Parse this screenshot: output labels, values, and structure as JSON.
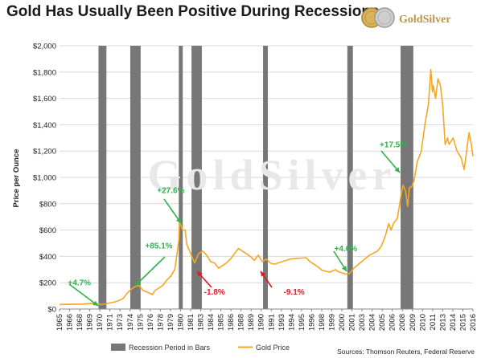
{
  "header": {
    "title": "Gold Has Usually Been Positive During Recessions",
    "brand": "GoldSilver",
    "colors": {
      "gold": "#f5a623",
      "recession": "#777777",
      "up": "#2db34a",
      "down": "#e0191d"
    }
  },
  "watermark": "GoldSilver",
  "footer": {
    "sources": "Sources: Thomson Reuters, Federal Reserve"
  },
  "chart_data": {
    "type": "line",
    "title": "Gold Has Usually Been Positive During Recessions",
    "ylabel": "Price per Ounce",
    "xlabel": "",
    "ylim": [
      0,
      2000
    ],
    "xlim": [
      1965,
      2017
    ],
    "grid": "horizontal",
    "legend": "bottom",
    "y_ticks": [
      "$0",
      "$200",
      "$400",
      "$600",
      "$800",
      "$1,000",
      "$1,200",
      "$1,400",
      "$1,600",
      "$1,800",
      "$2,000"
    ],
    "y_tick_values": [
      0,
      200,
      400,
      600,
      800,
      1000,
      1200,
      1400,
      1600,
      1800,
      2000
    ],
    "x_ticks": [
      "1965",
      "1966",
      "1968",
      "1969",
      "1970",
      "1971",
      "1973",
      "1974",
      "1975",
      "1976",
      "1978",
      "1979",
      "1980",
      "1981",
      "1983",
      "1984",
      "1985",
      "1986",
      "1988",
      "1989",
      "1990",
      "1991",
      "1993",
      "1994",
      "1995",
      "1996",
      "1998",
      "1999",
      "2000",
      "2001",
      "2003",
      "2004",
      "2005",
      "2006",
      "2008",
      "2009",
      "2010",
      "2011",
      "2013",
      "2014",
      "2015",
      "2016"
    ],
    "recessions": [
      [
        1969.9,
        1970.9
      ],
      [
        1973.9,
        1975.2
      ],
      [
        1980.0,
        1980.5
      ],
      [
        1981.6,
        1982.9
      ],
      [
        1990.6,
        1991.2
      ],
      [
        2001.2,
        2001.9
      ],
      [
        2007.9,
        2009.5
      ]
    ],
    "series": [
      {
        "name": "Gold Price",
        "color": "#f5a623",
        "x": [
          1965.0,
          1968.0,
          1969.0,
          1970.0,
          1970.5,
          1971.0,
          1972.0,
          1972.5,
          1973.0,
          1973.5,
          1974.0,
          1974.5,
          1975.0,
          1975.5,
          1976.0,
          1976.7,
          1977.0,
          1978.0,
          1978.5,
          1979.0,
          1979.5,
          1980.0,
          1980.1,
          1980.5,
          1980.8,
          1981.0,
          1981.5,
          1982.0,
          1982.5,
          1983.0,
          1983.5,
          1984.0,
          1984.5,
          1985.0,
          1985.5,
          1986.0,
          1986.5,
          1987.0,
          1987.5,
          1988.0,
          1988.5,
          1989.0,
          1989.5,
          1990.0,
          1990.5,
          1991.0,
          1991.5,
          1992.0,
          1993.0,
          1994.0,
          1995.0,
          1996.0,
          1996.5,
          1997.0,
          1997.5,
          1998.0,
          1999.0,
          1999.7,
          2000.0,
          2000.5,
          2001.0,
          2001.5,
          2002.0,
          2003.0,
          2004.0,
          2005.0,
          2005.5,
          2006.0,
          2006.4,
          2006.7,
          2007.0,
          2007.5,
          2008.0,
          2008.2,
          2008.5,
          2008.8,
          2009.0,
          2009.3,
          2009.6,
          2010.0,
          2010.5,
          2011.0,
          2011.4,
          2011.7,
          2011.9,
          2012.0,
          2012.3,
          2012.6,
          2012.9,
          2013.2,
          2013.5,
          2013.8,
          2014.0,
          2014.5,
          2015.0,
          2015.5,
          2015.9,
          2016.2,
          2016.5,
          2016.8,
          2017.0
        ],
        "values": [
          35,
          38,
          42,
          36,
          36,
          42,
          55,
          65,
          80,
          120,
          150,
          170,
          180,
          140,
          130,
          110,
          140,
          180,
          220,
          250,
          300,
          520,
          660,
          600,
          600,
          490,
          420,
          350,
          420,
          440,
          410,
          360,
          350,
          310,
          330,
          350,
          380,
          420,
          460,
          440,
          420,
          400,
          370,
          410,
          360,
          380,
          350,
          340,
          360,
          380,
          385,
          390,
          360,
          340,
          320,
          295,
          280,
          300,
          285,
          275,
          265,
          270,
          310,
          360,
          410,
          440,
          480,
          560,
          650,
          600,
          650,
          690,
          880,
          940,
          900,
          780,
          920,
          930,
          980,
          1120,
          1200,
          1420,
          1550,
          1820,
          1650,
          1700,
          1600,
          1750,
          1700,
          1550,
          1250,
          1300,
          1250,
          1300,
          1200,
          1150,
          1060,
          1200,
          1340,
          1250,
          1160
        ]
      }
    ],
    "annotations": [
      {
        "label": "+4.7%",
        "color": "#2db34a",
        "x": 1967.5,
        "y": 180
      },
      {
        "label": "+85.1%",
        "color": "#2db34a",
        "x": 1977.5,
        "y": 460
      },
      {
        "label": "+27.6%",
        "color": "#2db34a",
        "x": 1979.0,
        "y": 880
      },
      {
        "label": "-1.8%",
        "color": "#e0191d",
        "x": 1984.5,
        "y": 110
      },
      {
        "label": "-9.1%",
        "color": "#e0191d",
        "x": 1994.5,
        "y": 110
      },
      {
        "label": "+4.6%",
        "color": "#2db34a",
        "x": 2001.0,
        "y": 440
      },
      {
        "label": "+17.5%",
        "color": "#2db34a",
        "x": 2007.0,
        "y": 1230
      }
    ],
    "legend_entries": [
      "Recession Period in Bars",
      "Gold Price"
    ]
  }
}
